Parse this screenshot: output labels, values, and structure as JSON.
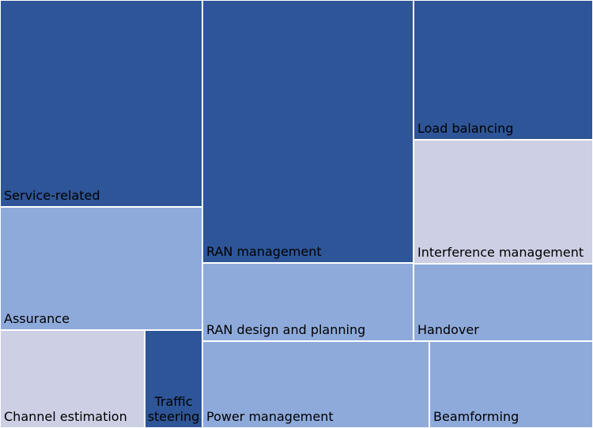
{
  "chart_data": {
    "type": "treemap",
    "colors": {
      "dark": "#2e5597",
      "medium": "#8eaadb",
      "light": "#cdd0e4"
    },
    "items": [
      {
        "label": "Service-related",
        "shade": "dark"
      },
      {
        "label": "Assurance",
        "shade": "medium"
      },
      {
        "label": "Channel estimation",
        "shade": "light"
      },
      {
        "label": "Traffic steering",
        "shade": "dark"
      },
      {
        "label": "RAN management",
        "shade": "dark"
      },
      {
        "label": "RAN design and planning",
        "shade": "medium"
      },
      {
        "label": "Power management",
        "shade": "medium"
      },
      {
        "label": "Load balancing",
        "shade": "dark"
      },
      {
        "label": "Interference management",
        "shade": "light"
      },
      {
        "label": "Handover",
        "shade": "medium"
      },
      {
        "label": "Beamforming",
        "shade": "medium"
      }
    ]
  }
}
